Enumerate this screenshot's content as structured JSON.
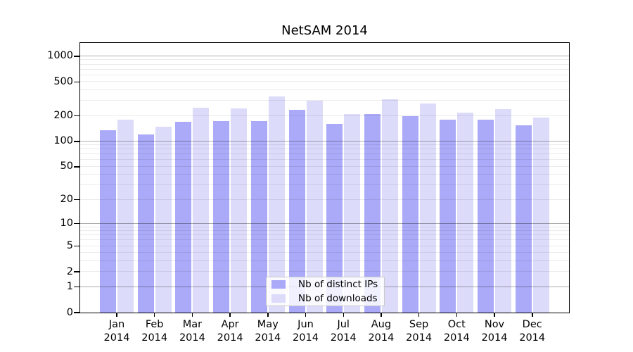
{
  "title": "NetSAM 2014",
  "chart_data": {
    "type": "bar",
    "title": "NetSAM 2014",
    "xlabel": "",
    "ylabel": "",
    "y_scale": "logarithmic (log10 of value+1), 0 at baseline",
    "y_axis_max": 1430,
    "y_ticks": [
      1000,
      500,
      200,
      100,
      50,
      20,
      10,
      5,
      2,
      1,
      0
    ],
    "y_major_gridlines": [
      1,
      10,
      100,
      1000
    ],
    "grid": "on",
    "legend_position": "bottom-center",
    "categories": [
      "Jan 2014",
      "Feb 2014",
      "Mar 2014",
      "Apr 2014",
      "May 2014",
      "Jun 2014",
      "Jul 2014",
      "Aug 2014",
      "Sep 2014",
      "Oct 2014",
      "Nov 2014",
      "Dec 2014"
    ],
    "series": [
      {
        "name": "Nb of distinct IPs",
        "color": "#aaaaf8",
        "values": [
          135,
          120,
          170,
          175,
          175,
          235,
          160,
          210,
          200,
          180,
          180,
          155
        ]
      },
      {
        "name": "Nb of downloads",
        "color": "#dcdcfa",
        "values": [
          180,
          150,
          250,
          245,
          340,
          300,
          210,
          315,
          280,
          220,
          240,
          190
        ]
      }
    ]
  },
  "colors": {
    "background": "#ffffff",
    "axis": "#000000",
    "text": "#000000",
    "grid_minor": "rgba(0,0,0,0.08)",
    "grid_major": "rgba(0,0,0,0.32)",
    "legend_bg": "rgba(255,255,255,0.82)",
    "legend_border": "#c9c9c9"
  }
}
